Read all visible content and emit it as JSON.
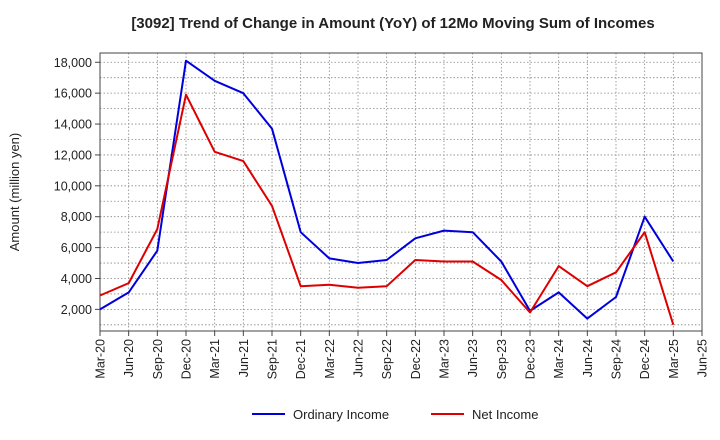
{
  "chart_data": {
    "type": "line",
    "title": "[3092]  Trend of Change in Amount (YoY) of 12Mo Moving Sum of Incomes",
    "xlabel": "",
    "ylabel": "Amount (million yen)",
    "ylim": [
      600,
      18600
    ],
    "yticks": [
      2000,
      4000,
      6000,
      8000,
      10000,
      12000,
      14000,
      16000,
      18000
    ],
    "ytick_labels": [
      "2,000",
      "4,000",
      "6,000",
      "8,000",
      "10,000",
      "12,000",
      "14,000",
      "16,000",
      "18,000"
    ],
    "x_labels": [
      "Mar-20",
      "Jun-20",
      "Sep-20",
      "Dec-20",
      "Mar-21",
      "Jun-21",
      "Sep-21",
      "Dec-21",
      "Mar-22",
      "Jun-22",
      "Sep-22",
      "Dec-22",
      "Mar-23",
      "Jun-23",
      "Sep-23",
      "Dec-23",
      "Mar-24",
      "Jun-24",
      "Sep-24",
      "Dec-24",
      "Mar-25",
      "Jun-25"
    ],
    "grid": true,
    "legend_position": "bottom",
    "series": [
      {
        "name": "Ordinary Income",
        "color": "#0000dd",
        "values": [
          2000,
          3100,
          5800,
          18100,
          16800,
          16000,
          13700,
          7000,
          5300,
          5000,
          5200,
          6600,
          7100,
          7000,
          5100,
          1900,
          3100,
          1400,
          2800,
          8000,
          5100,
          null
        ]
      },
      {
        "name": "Net Income",
        "color": "#dd0000",
        "values": [
          2900,
          3700,
          7200,
          15900,
          12200,
          11600,
          8700,
          3500,
          3600,
          3400,
          3500,
          5200,
          5100,
          5100,
          3900,
          1800,
          4800,
          3500,
          4400,
          7000,
          1000,
          null
        ]
      }
    ]
  }
}
